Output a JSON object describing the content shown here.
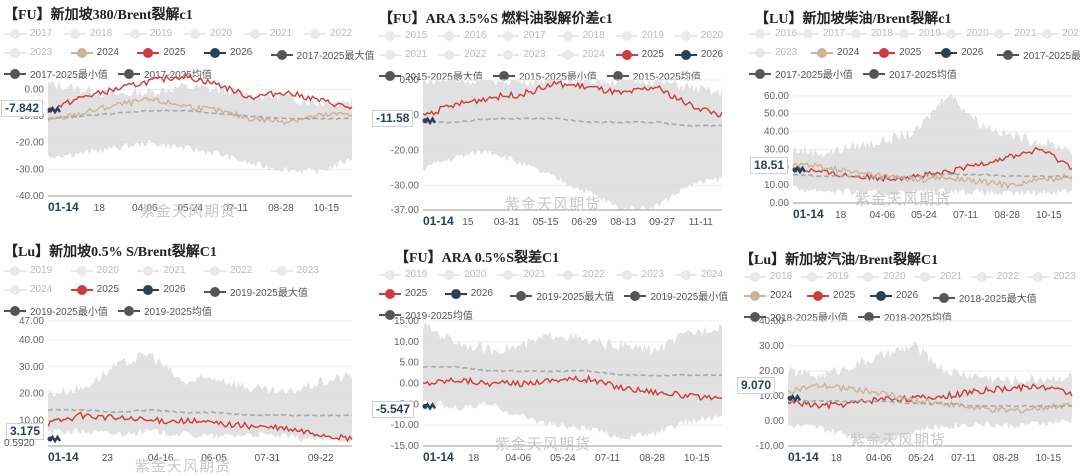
{
  "watermark": "紫金天风期货",
  "colors": {
    "band": "#dcdcdc",
    "c2024": "#c9b49a",
    "c2025": "#cf3b3b",
    "c2026": "#2b3f55",
    "max": "#555555",
    "avg": "#a8a8a8",
    "grey": "#d0d0d0"
  },
  "panels": [
    {
      "id": "p1",
      "title": "【FU】新加坡380/Brent裂解c1",
      "legend_rows": [
        [
          {
            "label": "2017",
            "dim": true
          },
          {
            "label": "2018",
            "dim": true
          },
          {
            "label": "2019",
            "dim": true
          },
          {
            "label": "2020",
            "dim": true
          },
          {
            "label": "2021",
            "dim": true
          },
          {
            "label": "2022",
            "dim": true
          }
        ],
        [
          {
            "label": "2023",
            "dim": true
          },
          {
            "label": "2024",
            "color": "c2024"
          },
          {
            "label": "2025",
            "color": "c2025"
          },
          {
            "label": "2026",
            "color": "c2026"
          },
          {
            "label": "2017-2025最大值",
            "color": "max"
          }
        ],
        [
          {
            "label": "2017-2025最小值",
            "color": "max"
          },
          {
            "label": "2017-2025均值",
            "color": "max"
          }
        ]
      ],
      "value_box": "-7.842",
      "chart_data": {
        "type": "line",
        "yticks": [
          "0.00",
          "-10.00",
          "-20.00",
          "-30.00",
          "-40.00"
        ],
        "ylim": [
          -40,
          5
        ],
        "xticks": [
          "01-14",
          "18",
          "04-06",
          "05-24",
          "07-11",
          "08-28",
          "10-15"
        ],
        "band_upper": [
          2,
          0,
          -2,
          -1,
          1,
          0,
          -2,
          -3,
          -5,
          -4
        ],
        "band_lower": [
          -25,
          -24,
          -22,
          -20,
          -22,
          -24,
          -28,
          -30,
          -31,
          -26
        ],
        "series": [
          {
            "name": "2025",
            "values": [
              -8,
              -3,
              0,
              3,
              5,
              2,
              -3,
              -1,
              -4,
              -7
            ]
          },
          {
            "name": "2024",
            "values": [
              -12,
              -9,
              -6,
              -4,
              -6,
              -8,
              -11,
              -12,
              -10,
              -9
            ]
          },
          {
            "name": "2017-2025均值",
            "values": [
              -11,
              -10,
              -9,
              -8,
              -8,
              -9,
              -10,
              -11,
              -11,
              -11
            ]
          },
          {
            "name": "2026",
            "values": [
              -7.8,
              -7.8
            ]
          }
        ]
      }
    },
    {
      "id": "p2",
      "title": "【FU】ARA 3.5%S 燃料油裂解价差c1",
      "legend_rows": [
        [
          {
            "label": "2015",
            "dim": true
          },
          {
            "label": "2016",
            "dim": true
          },
          {
            "label": "2017",
            "dim": true
          },
          {
            "label": "2018",
            "dim": true
          },
          {
            "label": "2019",
            "dim": true
          },
          {
            "label": "2020",
            "dim": true
          }
        ],
        [
          {
            "label": "2021",
            "dim": true
          },
          {
            "label": "2022",
            "dim": true
          },
          {
            "label": "2023",
            "dim": true
          },
          {
            "label": "2024",
            "dim": true
          },
          {
            "label": "2025",
            "color": "c2025"
          },
          {
            "label": "2026",
            "color": "c2026"
          }
        ],
        [
          {
            "label": "2015-2025最大值",
            "color": "max"
          },
          {
            "label": "2015-2025最小值",
            "color": "max"
          },
          {
            "label": "2015-2025均值",
            "color": "max"
          }
        ]
      ],
      "value_box": "-11.58",
      "chart_data": {
        "type": "line",
        "yticks": [
          "0.00",
          "-10.00",
          "-20.00",
          "-30.00",
          "-37.00"
        ],
        "ylim": [
          -37,
          0
        ],
        "xticks": [
          "01-14",
          "15",
          "03-31",
          "05-15",
          "06-29",
          "08-13",
          "09-27",
          "11-11"
        ],
        "band_upper": [
          0,
          0,
          0,
          0,
          0,
          0,
          0,
          0,
          -2,
          -4
        ],
        "band_lower": [
          -25,
          -22,
          -20,
          -24,
          -28,
          -32,
          -37,
          -36,
          -30,
          -28
        ],
        "series": [
          {
            "name": "2025",
            "values": [
              -10,
              -7,
              -5,
              -4,
              -1,
              -2,
              -4,
              -2,
              -7,
              -10
            ]
          },
          {
            "name": "2015-2025均值",
            "values": [
              -12,
              -12,
              -11,
              -11,
              -11,
              -12,
              -12,
              -12,
              -13,
              -13
            ]
          },
          {
            "name": "2026",
            "values": [
              -11.6,
              -11.6
            ]
          }
        ]
      }
    },
    {
      "id": "p3",
      "title": "【LU】新加坡柴油/Brent裂解c1",
      "legend_rows": [
        [
          {
            "label": "2016",
            "dim": true
          },
          {
            "label": "2017",
            "dim": true
          },
          {
            "label": "2018",
            "dim": true
          },
          {
            "label": "2019",
            "dim": true
          },
          {
            "label": "2020",
            "dim": true
          },
          {
            "label": "2021",
            "dim": true
          },
          {
            "label": "2022",
            "dim": true
          }
        ],
        [
          {
            "label": "2023",
            "dim": true
          },
          {
            "label": "2024",
            "color": "c2024"
          },
          {
            "label": "2025",
            "color": "c2025"
          },
          {
            "label": "2026",
            "color": "c2026"
          },
          {
            "label": "2017-2025最大值",
            "color": "max"
          }
        ],
        [
          {
            "label": "2017-2025最小值",
            "color": "max"
          },
          {
            "label": "2017-2025均值",
            "color": "max"
          }
        ]
      ],
      "value_box": "18.51",
      "chart_data": {
        "type": "line",
        "yticks": [
          "60.00",
          "50.00",
          "40.00",
          "30.00",
          "20.00",
          "10.00",
          "0.00"
        ],
        "ylim": [
          0,
          70
        ],
        "xticks": [
          "01-14",
          "18",
          "04-06",
          "05-24",
          "07-11",
          "08-28",
          "10-15"
        ],
        "band_upper": [
          30,
          28,
          32,
          35,
          40,
          62,
          45,
          38,
          34,
          30
        ],
        "band_lower": [
          8,
          7,
          6,
          5,
          6,
          7,
          6,
          5,
          6,
          7
        ],
        "series": [
          {
            "name": "2025",
            "values": [
              20,
              17,
              15,
              14,
              15,
              17,
              22,
              26,
              30,
              20
            ]
          },
          {
            "name": "2024",
            "values": [
              22,
              20,
              17,
              15,
              13,
              14,
              12,
              10,
              13,
              15
            ]
          },
          {
            "name": "2017-2025均值",
            "values": [
              16,
              15,
              15,
              14,
              15,
              16,
              16,
              15,
              15,
              15
            ]
          },
          {
            "name": "2026",
            "values": [
              18.5,
              18.5
            ]
          }
        ]
      }
    },
    {
      "id": "p4",
      "title": "【Lu】新加坡0.5% S/Brent裂解C1",
      "legend_rows": [
        [
          {
            "label": "2019",
            "dim": true
          },
          {
            "label": "2020",
            "dim": true
          },
          {
            "label": "2021",
            "dim": true
          },
          {
            "label": "2022",
            "dim": true
          },
          {
            "label": "2023",
            "dim": true
          }
        ],
        [
          {
            "label": "2024",
            "dim": true
          },
          {
            "label": "2025",
            "color": "c2025"
          },
          {
            "label": "2026",
            "color": "c2026"
          },
          {
            "label": "2019-2025最大值",
            "color": "max"
          }
        ],
        [
          {
            "label": "2019-2025最小值",
            "color": "max"
          },
          {
            "label": "2019-2025均值",
            "color": "max"
          }
        ]
      ],
      "value_box": "3.175",
      "bottom_tick": "0.5920",
      "chart_data": {
        "type": "line",
        "yticks": [
          "47.00",
          "40.00",
          "30.00",
          "20.00",
          "10.00"
        ],
        "ylim": [
          0.592,
          47
        ],
        "xticks": [
          "01-14",
          "23",
          "04-16",
          "06-05",
          "07-31",
          "09-22"
        ],
        "band_upper": [
          20,
          22,
          30,
          35,
          24,
          26,
          22,
          20,
          24,
          27
        ],
        "band_lower": [
          6,
          6,
          5,
          6,
          5,
          4,
          5,
          4,
          3,
          3
        ],
        "series": [
          {
            "name": "2025",
            "values": [
              9,
              12,
              11,
              10,
              10,
              9,
              8,
              7,
              5,
              3
            ]
          },
          {
            "name": "2019-2025均值",
            "values": [
              14,
              14,
              13,
              14,
              13,
              13,
              12,
              12,
              12,
              12
            ]
          },
          {
            "name": "2026",
            "values": [
              3.2,
              3.2
            ]
          }
        ]
      }
    },
    {
      "id": "p5",
      "title": "【FU】ARA 0.5%S裂差C1",
      "legend_rows": [
        [
          {
            "label": "2019",
            "dim": true
          },
          {
            "label": "2020",
            "dim": true
          },
          {
            "label": "2021",
            "dim": true
          },
          {
            "label": "2022",
            "dim": true
          },
          {
            "label": "2023",
            "dim": true
          },
          {
            "label": "2024",
            "dim": true
          }
        ],
        [
          {
            "label": "2025",
            "color": "c2025"
          },
          {
            "label": "2026",
            "color": "c2026"
          },
          {
            "label": "2019-2025最大值",
            "color": "max"
          },
          {
            "label": "2019-2025最小值",
            "color": "max"
          }
        ],
        [
          {
            "label": "2019-2025均值",
            "color": "max"
          }
        ]
      ],
      "value_box": "-5.547",
      "chart_data": {
        "type": "line",
        "yticks": [
          "15.00",
          "10.00",
          "5.00",
          "0.00",
          "-5.00",
          "-10.00",
          "-15.00"
        ],
        "ylim": [
          -15,
          15
        ],
        "xticks": [
          "01-14",
          "18",
          "04-06",
          "05-24",
          "07-11",
          "08-28",
          "10-15"
        ],
        "band_upper": [
          14,
          10,
          8,
          9,
          12,
          10,
          9,
          8,
          12,
          14
        ],
        "band_lower": [
          -4,
          -6,
          -5,
          -8,
          -10,
          -11,
          -13,
          -12,
          -9,
          -8
        ],
        "series": [
          {
            "name": "2025",
            "values": [
              0,
              1,
              0,
              0,
              1,
              1,
              -1,
              -2,
              -3,
              -4
            ]
          },
          {
            "name": "2019-2025均值",
            "values": [
              4,
              4,
              3,
              3,
              3,
              3,
              2,
              2,
              2,
              2
            ]
          },
          {
            "name": "2026",
            "values": [
              -5.5,
              -5.5
            ]
          }
        ]
      }
    },
    {
      "id": "p6",
      "title": "【Lu】新加坡汽油/Brent裂解C1",
      "legend_rows": [
        [
          {
            "label": "2018",
            "dim": true
          },
          {
            "label": "2019",
            "dim": true
          },
          {
            "label": "2020",
            "dim": true
          },
          {
            "label": "2021",
            "dim": true
          },
          {
            "label": "2022",
            "dim": true
          },
          {
            "label": "2023",
            "dim": true
          }
        ],
        [
          {
            "label": "2024",
            "color": "c2024"
          },
          {
            "label": "2025",
            "color": "c2025"
          },
          {
            "label": "2026",
            "color": "c2026"
          },
          {
            "label": "2018-2025最大值",
            "color": "max"
          }
        ],
        [
          {
            "label": "2018-2025最小值",
            "color": "max"
          },
          {
            "label": "2018-2025均值",
            "color": "max"
          }
        ]
      ],
      "value_box": "9.070",
      "chart_data": {
        "type": "line",
        "yticks": [
          "40.00",
          "30.00",
          "20.00",
          "10.00",
          "0.00",
          "-10.00"
        ],
        "ylim": [
          -10,
          40
        ],
        "xticks": [
          "01-14",
          "18",
          "04-06",
          "05-24",
          "07-11",
          "08-28",
          "10-15"
        ],
        "band_upper": [
          20,
          18,
          22,
          26,
          30,
          20,
          18,
          16,
          17,
          18
        ],
        "band_lower": [
          -2,
          -3,
          -6,
          -8,
          -4,
          -2,
          -1,
          -2,
          -1,
          0
        ],
        "series": [
          {
            "name": "2025",
            "values": [
              8,
              6,
              7,
              9,
              9,
              10,
              12,
              13,
              14,
              11
            ]
          },
          {
            "name": "2024",
            "values": [
              12,
              14,
              13,
              11,
              8,
              7,
              5,
              4,
              5,
              7
            ]
          },
          {
            "name": "2018-2025均值",
            "values": [
              8,
              8,
              8,
              8,
              7,
              7,
              6,
              6,
              6,
              6
            ]
          },
          {
            "name": "2026",
            "values": [
              9.1,
              9.1
            ]
          }
        ]
      }
    }
  ]
}
